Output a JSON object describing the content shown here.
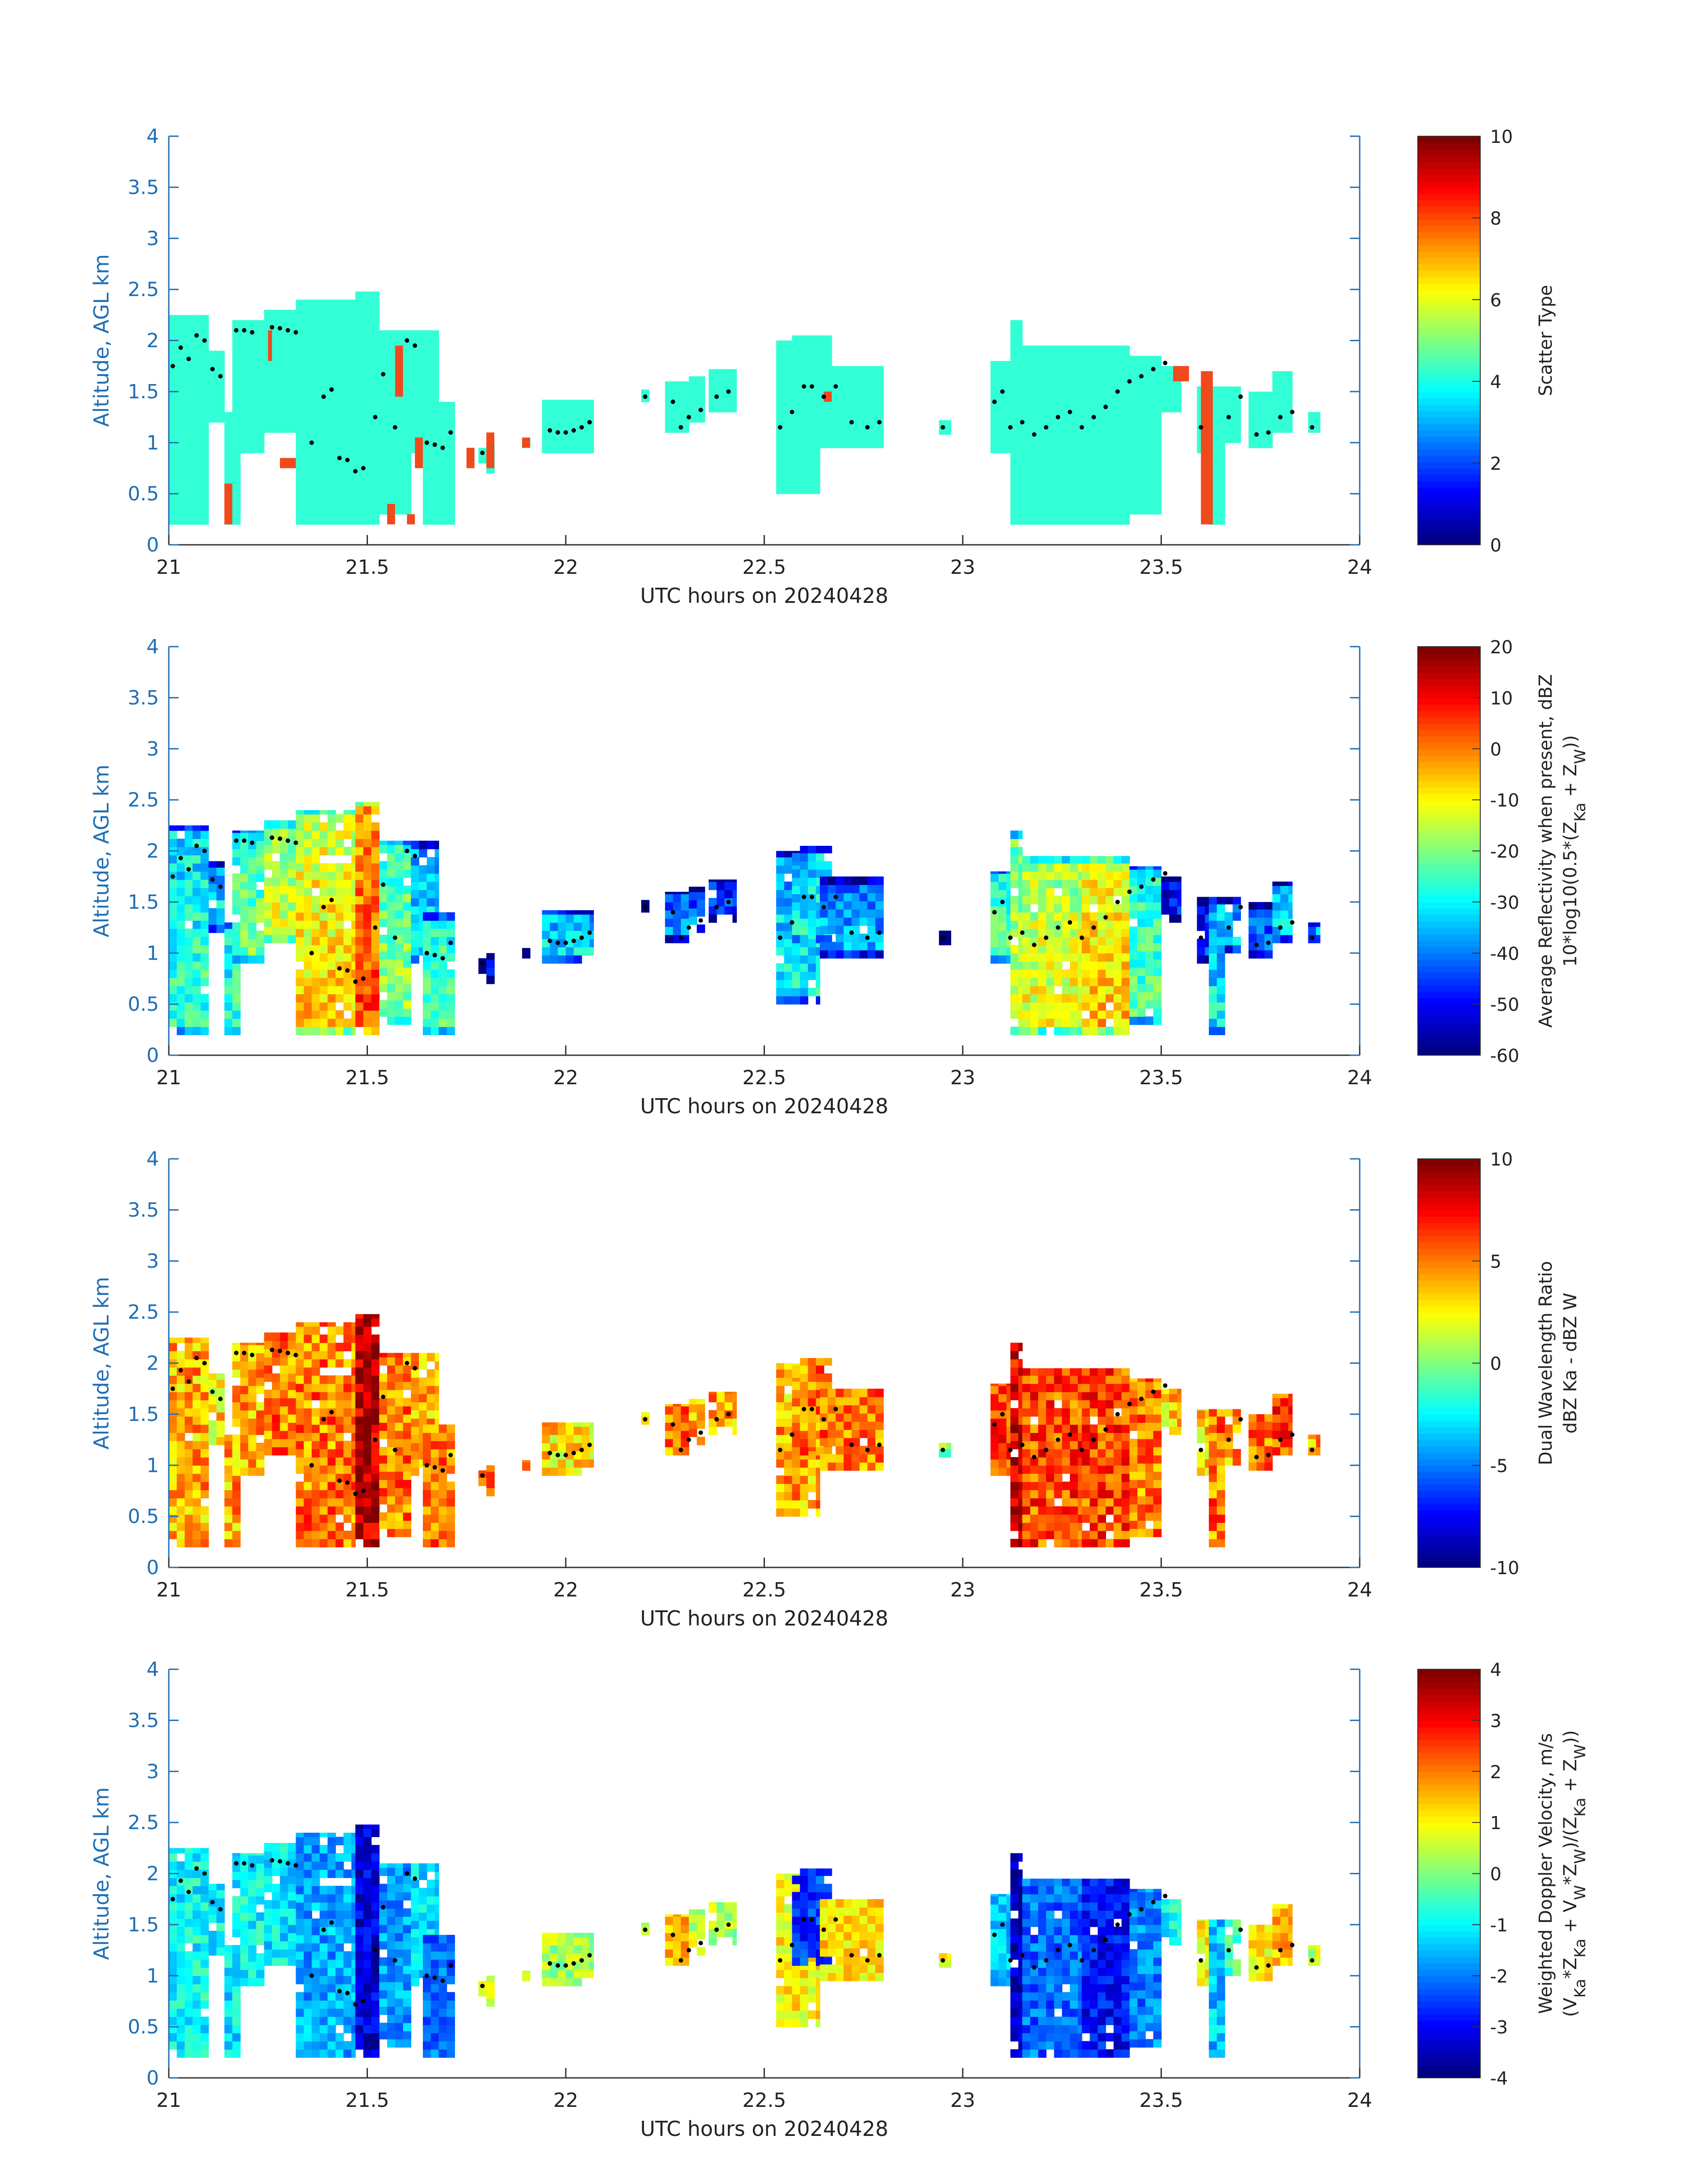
{
  "chart_data": [
    {
      "type": "heatmap",
      "xlabel": "UTC hours on 20240428",
      "ylabel": "Altitude, AGL km",
      "xlim": [
        21,
        24
      ],
      "ylim": [
        0,
        4
      ],
      "xticks": [
        "21",
        "21.5",
        "22",
        "22.5",
        "23",
        "23.5",
        "24"
      ],
      "yticks": [
        "0",
        "0.5",
        "1",
        "1.5",
        "2",
        "2.5",
        "3",
        "3.5",
        "4"
      ],
      "colorbar": {
        "label_lines": [
          "Scatter Type"
        ],
        "range": [
          0,
          10
        ],
        "ticks": [
          "0",
          "2",
          "4",
          "6",
          "8",
          "10"
        ]
      },
      "field": "scatter"
    },
    {
      "type": "heatmap",
      "xlabel": "UTC hours on 20240428",
      "ylabel": "Altitude, AGL km",
      "xlim": [
        21,
        24
      ],
      "ylim": [
        0,
        4
      ],
      "xticks": [
        "21",
        "21.5",
        "22",
        "22.5",
        "23",
        "23.5",
        "24"
      ],
      "yticks": [
        "0",
        "0.5",
        "1",
        "1.5",
        "2",
        "2.5",
        "3",
        "3.5",
        "4"
      ],
      "colorbar": {
        "label_lines": [
          "Average Reflectivity when present, dBZ",
          "10*log10(0.5*(Z_Ka + Z_W))"
        ],
        "range": [
          -60,
          20
        ],
        "ticks": [
          "-60",
          "-50",
          "-40",
          "-30",
          "-20",
          "-10",
          "0",
          "10",
          "20"
        ]
      },
      "field": "reflectivity"
    },
    {
      "type": "heatmap",
      "xlabel": "UTC hours on 20240428",
      "ylabel": "Altitude, AGL km",
      "xlim": [
        21,
        24
      ],
      "ylim": [
        0,
        4
      ],
      "xticks": [
        "21",
        "21.5",
        "22",
        "22.5",
        "23",
        "23.5",
        "24"
      ],
      "yticks": [
        "0",
        "0.5",
        "1",
        "1.5",
        "2",
        "2.5",
        "3",
        "3.5",
        "4"
      ],
      "colorbar": {
        "label_lines": [
          "Dual Wavelength Ratio",
          "dBZ Ka - dBZ W"
        ],
        "range": [
          -10,
          10
        ],
        "ticks": [
          "-10",
          "-5",
          "0",
          "5",
          "10"
        ]
      },
      "field": "dwr"
    },
    {
      "type": "heatmap",
      "xlabel": "UTC hours on 20240428",
      "ylabel": "Altitude, AGL km",
      "xlim": [
        21,
        24
      ],
      "ylim": [
        0,
        4
      ],
      "xticks": [
        "21",
        "21.5",
        "22",
        "22.5",
        "23",
        "23.5",
        "24"
      ],
      "yticks": [
        "0",
        "0.5",
        "1",
        "1.5",
        "2",
        "2.5",
        "3",
        "3.5",
        "4"
      ],
      "colorbar": {
        "label_lines": [
          "Weighted Doppler Velocity, m/s",
          "(V_Ka*Z_Ka + V_W*Z_W)/(Z_Ka + Z_W))"
        ],
        "range": [
          -4,
          4
        ],
        "ticks": [
          "-4",
          "-3",
          "-2",
          "-1",
          "0",
          "1",
          "2",
          "3",
          "4"
        ]
      },
      "field": "velocity"
    }
  ],
  "cloud_columns": [
    {
      "x0": 21.0,
      "x1": 21.1,
      "base": 0.2,
      "top": 2.25,
      "ref": -25,
      "dwr": 4,
      "vel": -1.0
    },
    {
      "x0": 21.1,
      "x1": 21.14,
      "base": 1.2,
      "top": 1.9,
      "ref": -30,
      "dwr": 3,
      "vel": -1.0
    },
    {
      "x0": 21.14,
      "x1": 21.18,
      "base": 0.2,
      "top": 1.3,
      "ref": -25,
      "dwr": 4,
      "vel": -1.2
    },
    {
      "x0": 21.16,
      "x1": 21.24,
      "base": 0.9,
      "top": 2.2,
      "ref": -20,
      "dwr": 4,
      "vel": -1.0
    },
    {
      "x0": 21.24,
      "x1": 21.32,
      "base": 1.1,
      "top": 2.3,
      "ref": -12,
      "dwr": 5,
      "vel": -1.2
    },
    {
      "x0": 21.32,
      "x1": 21.47,
      "base": 0.2,
      "top": 2.4,
      "ref": -6,
      "dwr": 5,
      "vel": -1.7
    },
    {
      "x0": 21.47,
      "x1": 21.53,
      "base": 0.2,
      "top": 2.48,
      "ref": 5,
      "dwr": 9,
      "vel": -3.3
    },
    {
      "x0": 21.53,
      "x1": 21.61,
      "base": 0.3,
      "top": 2.1,
      "ref": -18,
      "dwr": 5,
      "vel": -1.8
    },
    {
      "x0": 21.61,
      "x1": 21.68,
      "base": 0.9,
      "top": 2.1,
      "ref": -30,
      "dwr": 4,
      "vel": -1.2
    },
    {
      "x0": 21.64,
      "x1": 21.72,
      "base": 0.2,
      "top": 1.4,
      "ref": -22,
      "dwr": 5,
      "vel": -2.2
    },
    {
      "x0": 21.78,
      "x1": 21.8,
      "base": 0.8,
      "top": 0.95,
      "ref": -48,
      "dwr": 4,
      "vel": 0.5
    },
    {
      "x0": 21.8,
      "x1": 21.82,
      "base": 0.7,
      "top": 1.0,
      "ref": -50,
      "dwr": 5,
      "vel": 0.5
    },
    {
      "x0": 21.89,
      "x1": 21.91,
      "base": 0.95,
      "top": 1.05,
      "ref": -50,
      "dwr": 5,
      "vel": 0.5
    },
    {
      "x0": 21.94,
      "x1": 22.07,
      "base": 0.9,
      "top": 1.42,
      "ref": -30,
      "dwr": 3,
      "vel": 0.3
    },
    {
      "x0": 22.19,
      "x1": 22.21,
      "base": 1.4,
      "top": 1.52,
      "ref": -50,
      "dwr": 3,
      "vel": 0.5
    },
    {
      "x0": 22.25,
      "x1": 22.31,
      "base": 1.1,
      "top": 1.6,
      "ref": -38,
      "dwr": 5,
      "vel": 1.5
    },
    {
      "x0": 22.31,
      "x1": 22.35,
      "base": 1.2,
      "top": 1.65,
      "ref": -40,
      "dwr": 4,
      "vel": 0.5
    },
    {
      "x0": 22.36,
      "x1": 22.43,
      "base": 1.3,
      "top": 1.72,
      "ref": -44,
      "dwr": 4,
      "vel": 0.3
    },
    {
      "x0": 22.53,
      "x1": 22.64,
      "base": 0.5,
      "top": 2.0,
      "ref": -30,
      "dwr": 4,
      "vel": 1.0
    },
    {
      "x0": 22.57,
      "x1": 22.67,
      "base": 1.1,
      "top": 2.05,
      "ref": -28,
      "dwr": 5,
      "vel": -2.6
    },
    {
      "x0": 22.64,
      "x1": 22.8,
      "base": 0.95,
      "top": 1.75,
      "ref": -35,
      "dwr": 5,
      "vel": 1.2
    },
    {
      "x0": 22.94,
      "x1": 22.97,
      "base": 1.08,
      "top": 1.22,
      "ref": -50,
      "dwr": 0,
      "vel": 1.0
    },
    {
      "x0": 23.07,
      "x1": 23.12,
      "base": 0.9,
      "top": 1.8,
      "ref": -22,
      "dwr": 6,
      "vel": -1.5
    },
    {
      "x0": 23.12,
      "x1": 23.15,
      "base": 0.2,
      "top": 2.2,
      "ref": -14,
      "dwr": 8,
      "vel": -3.6
    },
    {
      "x0": 23.15,
      "x1": 23.3,
      "base": 0.2,
      "top": 1.95,
      "ref": -10,
      "dwr": 6,
      "vel": -2.2
    },
    {
      "x0": 23.3,
      "x1": 23.42,
      "base": 0.2,
      "top": 1.95,
      "ref": -5,
      "dwr": 6,
      "vel": -3.0
    },
    {
      "x0": 23.42,
      "x1": 23.5,
      "base": 0.3,
      "top": 1.85,
      "ref": -22,
      "dwr": 5,
      "vel": -2.0
    },
    {
      "x0": 23.5,
      "x1": 23.55,
      "base": 1.3,
      "top": 1.75,
      "ref": -48,
      "dwr": 3,
      "vel": -1.0
    },
    {
      "x0": 23.59,
      "x1": 23.62,
      "base": 0.9,
      "top": 1.55,
      "ref": -45,
      "dwr": 3,
      "vel": 1.0
    },
    {
      "x0": 23.62,
      "x1": 23.66,
      "base": 0.2,
      "top": 1.55,
      "ref": -30,
      "dwr": 5,
      "vel": -1.5
    },
    {
      "x0": 23.66,
      "x1": 23.7,
      "base": 1.0,
      "top": 1.55,
      "ref": -35,
      "dwr": 4,
      "vel": -0.5
    },
    {
      "x0": 23.72,
      "x1": 23.78,
      "base": 0.95,
      "top": 1.5,
      "ref": -40,
      "dwr": 5,
      "vel": 1.0
    },
    {
      "x0": 23.78,
      "x1": 23.83,
      "base": 1.1,
      "top": 1.7,
      "ref": -32,
      "dwr": 6,
      "vel": 1.5
    },
    {
      "x0": 23.87,
      "x1": 23.9,
      "base": 1.1,
      "top": 1.3,
      "ref": -35,
      "dwr": 4,
      "vel": 0.5
    }
  ],
  "scatter_red_patches": [
    {
      "x0": 21.14,
      "x1": 21.16,
      "base": 0.2,
      "top": 0.6
    },
    {
      "x0": 21.25,
      "x1": 21.26,
      "base": 1.8,
      "top": 2.1
    },
    {
      "x0": 21.28,
      "x1": 21.32,
      "base": 0.75,
      "top": 0.85
    },
    {
      "x0": 21.55,
      "x1": 21.57,
      "base": 0.2,
      "top": 0.4
    },
    {
      "x0": 21.57,
      "x1": 21.59,
      "base": 1.45,
      "top": 1.95
    },
    {
      "x0": 21.6,
      "x1": 21.62,
      "base": 0.2,
      "top": 0.3
    },
    {
      "x0": 21.62,
      "x1": 21.64,
      "base": 0.75,
      "top": 1.05
    },
    {
      "x0": 21.75,
      "x1": 21.77,
      "base": 0.75,
      "top": 0.95
    },
    {
      "x0": 21.8,
      "x1": 21.82,
      "base": 0.75,
      "top": 1.1
    },
    {
      "x0": 21.89,
      "x1": 21.91,
      "base": 0.95,
      "top": 1.05
    },
    {
      "x0": 22.65,
      "x1": 22.67,
      "base": 1.4,
      "top": 1.5
    },
    {
      "x0": 23.53,
      "x1": 23.57,
      "base": 1.6,
      "top": 1.75
    },
    {
      "x0": 23.6,
      "x1": 23.63,
      "base": 0.2,
      "top": 1.7
    }
  ],
  "cloud_base_dots": [
    [
      21.01,
      1.75
    ],
    [
      21.03,
      1.93
    ],
    [
      21.05,
      1.82
    ],
    [
      21.07,
      2.05
    ],
    [
      21.09,
      2.0
    ],
    [
      21.11,
      1.72
    ],
    [
      21.13,
      1.65
    ],
    [
      21.17,
      2.1
    ],
    [
      21.19,
      2.1
    ],
    [
      21.21,
      2.08
    ],
    [
      21.26,
      2.13
    ],
    [
      21.28,
      2.12
    ],
    [
      21.3,
      2.1
    ],
    [
      21.32,
      2.08
    ],
    [
      21.36,
      1.0
    ],
    [
      21.39,
      1.45
    ],
    [
      21.41,
      1.52
    ],
    [
      21.43,
      0.85
    ],
    [
      21.45,
      0.83
    ],
    [
      21.47,
      0.72
    ],
    [
      21.49,
      0.75
    ],
    [
      21.52,
      1.25
    ],
    [
      21.54,
      1.67
    ],
    [
      21.57,
      1.15
    ],
    [
      21.6,
      2.0
    ],
    [
      21.62,
      1.95
    ],
    [
      21.65,
      1.0
    ],
    [
      21.67,
      0.98
    ],
    [
      21.69,
      0.95
    ],
    [
      21.71,
      1.1
    ],
    [
      21.79,
      0.9
    ],
    [
      21.96,
      1.12
    ],
    [
      21.98,
      1.1
    ],
    [
      22.0,
      1.1
    ],
    [
      22.02,
      1.12
    ],
    [
      22.04,
      1.15
    ],
    [
      22.06,
      1.2
    ],
    [
      22.2,
      1.45
    ],
    [
      22.27,
      1.4
    ],
    [
      22.29,
      1.15
    ],
    [
      22.31,
      1.25
    ],
    [
      22.34,
      1.32
    ],
    [
      22.38,
      1.45
    ],
    [
      22.41,
      1.5
    ],
    [
      22.54,
      1.15
    ],
    [
      22.57,
      1.3
    ],
    [
      22.6,
      1.55
    ],
    [
      22.62,
      1.55
    ],
    [
      22.65,
      1.45
    ],
    [
      22.68,
      1.55
    ],
    [
      22.72,
      1.2
    ],
    [
      22.76,
      1.15
    ],
    [
      22.79,
      1.2
    ],
    [
      22.95,
      1.15
    ],
    [
      23.08,
      1.4
    ],
    [
      23.1,
      1.5
    ],
    [
      23.12,
      1.15
    ],
    [
      23.15,
      1.2
    ],
    [
      23.18,
      1.08
    ],
    [
      23.21,
      1.15
    ],
    [
      23.24,
      1.25
    ],
    [
      23.27,
      1.3
    ],
    [
      23.3,
      1.15
    ],
    [
      23.33,
      1.25
    ],
    [
      23.36,
      1.35
    ],
    [
      23.39,
      1.5
    ],
    [
      23.42,
      1.6
    ],
    [
      23.45,
      1.65
    ],
    [
      23.48,
      1.72
    ],
    [
      23.51,
      1.78
    ],
    [
      23.6,
      1.15
    ],
    [
      23.67,
      1.25
    ],
    [
      23.7,
      1.45
    ],
    [
      23.74,
      1.08
    ],
    [
      23.77,
      1.1
    ],
    [
      23.8,
      1.25
    ],
    [
      23.83,
      1.3
    ],
    [
      23.88,
      1.15
    ]
  ]
}
